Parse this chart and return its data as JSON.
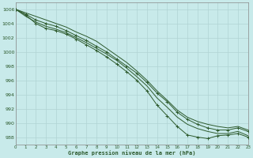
{
  "title": "Graphe pression niveau de la mer (hPa)",
  "background_color": "#c8eaea",
  "grid_color": "#b0d4d4",
  "line_color": "#2d5a2d",
  "ylim": [
    987,
    1007
  ],
  "xlim": [
    0,
    23
  ],
  "yticks": [
    988,
    990,
    992,
    994,
    996,
    998,
    1000,
    1002,
    1004,
    1006
  ],
  "xticks": [
    0,
    1,
    2,
    3,
    4,
    5,
    6,
    7,
    8,
    9,
    10,
    11,
    12,
    13,
    14,
    15,
    16,
    17,
    18,
    19,
    20,
    21,
    22,
    23
  ],
  "series": [
    [
      1006.0,
      1005.2,
      1004.0,
      1003.3,
      1003.0,
      1002.5,
      1001.8,
      1001.0,
      1000.2,
      999.3,
      998.3,
      997.2,
      996.0,
      994.5,
      992.5,
      991.0,
      989.5,
      988.3,
      988.0,
      987.8,
      988.2,
      988.3,
      988.5,
      988.0
    ],
    [
      1006.0,
      1005.0,
      1004.2,
      1003.6,
      1003.2,
      1002.7,
      1002.0,
      1001.3,
      1000.5,
      999.7,
      998.8,
      997.7,
      996.5,
      995.2,
      993.5,
      992.2,
      990.8,
      989.8,
      989.2,
      988.8,
      988.5,
      988.5,
      988.8,
      988.2
    ],
    [
      1006.0,
      1005.3,
      1004.5,
      1004.0,
      1003.6,
      1003.0,
      1002.3,
      1001.6,
      1000.8,
      1000.0,
      999.0,
      998.0,
      997.0,
      995.7,
      994.2,
      993.0,
      991.5,
      990.5,
      989.8,
      989.3,
      989.0,
      989.0,
      989.3,
      988.8
    ],
    [
      1006.0,
      1005.5,
      1005.0,
      1004.5,
      1004.0,
      1003.5,
      1002.8,
      1002.2,
      1001.5,
      1000.5,
      999.5,
      998.5,
      997.3,
      996.0,
      994.5,
      993.2,
      991.8,
      990.8,
      990.2,
      989.8,
      989.5,
      989.3,
      989.5,
      989.0
    ]
  ],
  "markers": [
    1,
    3
  ]
}
